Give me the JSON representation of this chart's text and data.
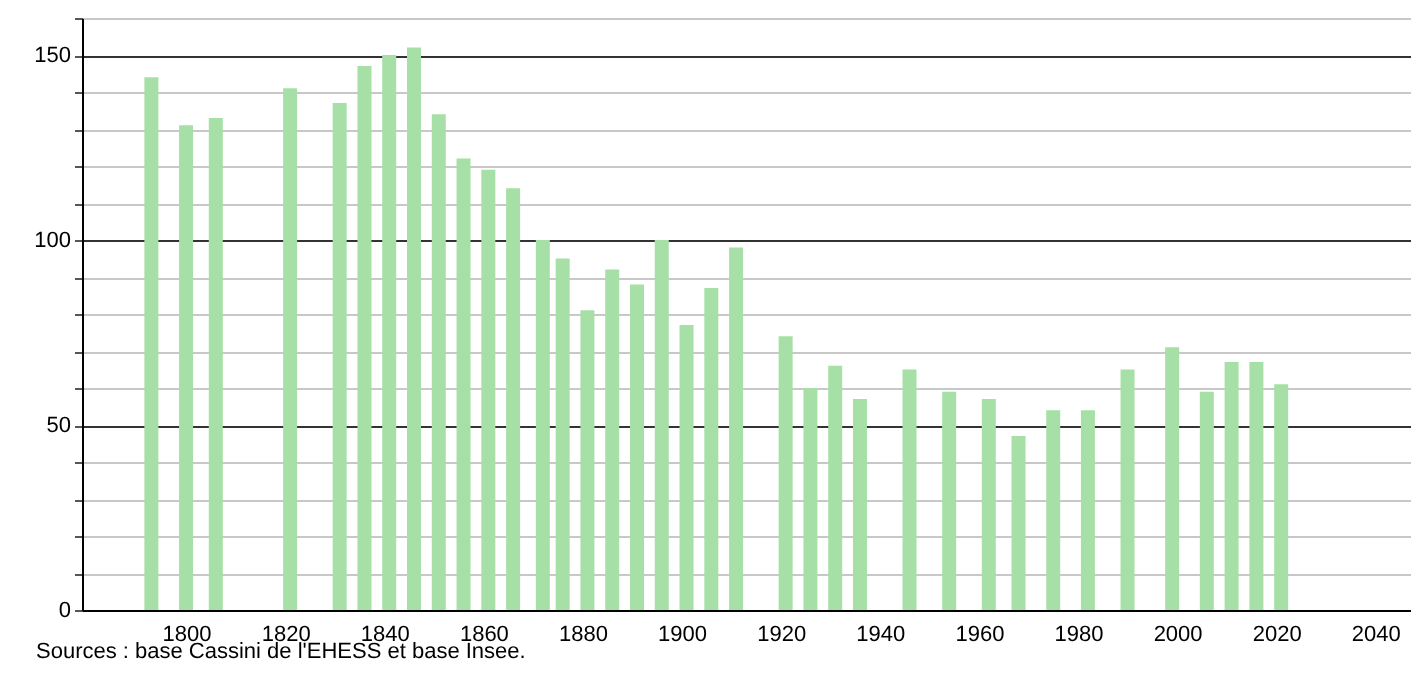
{
  "chart_data": {
    "type": "bar",
    "x": [
      1793,
      1800,
      1806,
      1821,
      1831,
      1836,
      1841,
      1846,
      1851,
      1856,
      1861,
      1866,
      1872,
      1876,
      1881,
      1886,
      1891,
      1896,
      1901,
      1906,
      1911,
      1921,
      1926,
      1931,
      1936,
      1946,
      1954,
      1962,
      1968,
      1975,
      1982,
      1990,
      1999,
      2006,
      2011,
      2016,
      2021
    ],
    "values": [
      144,
      131,
      133,
      141,
      137,
      147,
      150,
      152,
      134,
      122,
      119,
      114,
      100,
      95,
      81,
      92,
      88,
      100,
      77,
      87,
      98,
      74,
      60,
      66,
      57,
      65,
      59,
      57,
      47,
      54,
      54,
      65,
      71,
      59,
      67,
      67,
      61
    ],
    "color": "#a6e0a6",
    "xlim": [
      1779,
      2047
    ],
    "xticks": [
      1800,
      1820,
      1840,
      1860,
      1880,
      1900,
      1920,
      1940,
      1960,
      1980,
      2000,
      2020,
      2040
    ],
    "ylim": [
      0,
      160
    ],
    "yticks": [
      0,
      {
        "value": 10,
        "label": null
      },
      {
        "value": 20,
        "label": null
      },
      {
        "value": 30,
        "label": null
      },
      {
        "value": 40,
        "label": null
      },
      50,
      {
        "value": 60,
        "label": null
      },
      {
        "value": 70,
        "label": null
      },
      {
        "value": 80,
        "label": null
      },
      {
        "value": 90,
        "label": null
      },
      100,
      {
        "value": 110,
        "label": null
      },
      {
        "value": 120,
        "label": null
      },
      {
        "value": 130,
        "label": null
      },
      {
        "value": 140,
        "label": null
      },
      150,
      {
        "value": 160,
        "label": null
      }
    ],
    "grid": "y",
    "annotations": [
      "Sources : base Cassini de l'EHESS et base Insee."
    ]
  }
}
